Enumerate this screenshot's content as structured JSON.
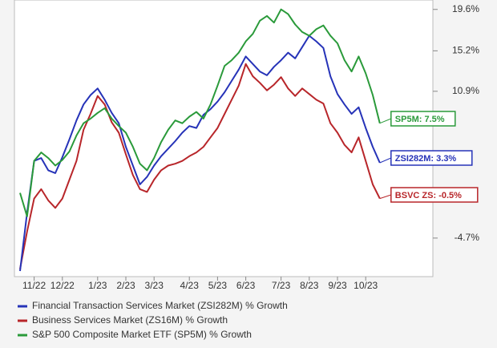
{
  "chart_data": {
    "type": "line",
    "categories": [
      null,
      null,
      "11/22",
      null,
      null,
      null,
      "12/22",
      null,
      null,
      null,
      null,
      "1/23",
      null,
      null,
      null,
      "2/23",
      null,
      null,
      null,
      "3/23",
      null,
      null,
      null,
      null,
      "4/23",
      null,
      null,
      null,
      "5/23",
      null,
      null,
      null,
      "6/23",
      null,
      null,
      null,
      null,
      "7/23",
      null,
      null,
      null,
      "8/23",
      null,
      null,
      null,
      "9/23",
      null,
      null,
      null,
      "10/23",
      null,
      null
    ],
    "ylim": [
      -8.8,
      20.6
    ],
    "yticks": [
      {
        "value": 19.6,
        "label": "19.6%"
      },
      {
        "value": 15.2,
        "label": "15.2%"
      },
      {
        "value": 10.9,
        "label": "10.9%"
      },
      {
        "value": -4.7,
        "label": "-4.7%"
      }
    ],
    "series": [
      {
        "name": "Financial Transaction Services Market (ZSI282M) % Growth",
        "color": "#2633b8",
        "end_label": "ZSI282M: 3.3%",
        "values": [
          -8.2,
          -2.0,
          3.5,
          3.8,
          2.5,
          2.2,
          3.9,
          5.8,
          7.8,
          9.5,
          10.5,
          11.2,
          10.0,
          8.6,
          7.5,
          5.0,
          3.0,
          1.0,
          1.8,
          3.0,
          4.0,
          4.8,
          5.6,
          6.5,
          7.2,
          7.0,
          8.4,
          9.0,
          9.8,
          10.8,
          12.0,
          13.2,
          14.6,
          13.8,
          13.0,
          12.6,
          13.5,
          14.2,
          15.0,
          14.4,
          15.6,
          16.8,
          16.2,
          15.5,
          12.5,
          10.6,
          9.5,
          8.5,
          9.2,
          7.0,
          5.0,
          3.3
        ]
      },
      {
        "name": "Business Services Market (ZS16M) % Growth",
        "color": "#b8262a",
        "end_label": "BSVC ZS: -0.5%",
        "values": [
          -8.0,
          -4.0,
          -0.5,
          0.5,
          -0.7,
          -1.5,
          -0.5,
          1.5,
          3.5,
          6.8,
          8.5,
          10.4,
          9.5,
          7.6,
          6.5,
          4.2,
          2.0,
          0.5,
          0.2,
          1.5,
          2.5,
          3.0,
          3.2,
          3.5,
          4.0,
          4.4,
          5.0,
          6.0,
          7.0,
          8.5,
          10.0,
          11.5,
          13.8,
          12.5,
          11.8,
          11.0,
          11.6,
          12.4,
          11.2,
          10.4,
          11.2,
          10.6,
          10.0,
          9.6,
          7.5,
          6.5,
          5.2,
          4.4,
          6.0,
          3.5,
          1.0,
          -0.5
        ]
      },
      {
        "name": "S&P 500 Composite Market ETF (SP5M) % Growth",
        "color": "#2a9a3a",
        "end_label": "SP5M: 7.5%",
        "values": [
          0.1,
          -2.4,
          3.5,
          4.4,
          3.8,
          3.0,
          3.6,
          4.5,
          6.2,
          7.5,
          8.0,
          8.6,
          9.1,
          8.0,
          7.2,
          6.5,
          5.0,
          3.2,
          2.5,
          3.8,
          5.5,
          6.8,
          7.8,
          7.5,
          8.2,
          8.7,
          8.0,
          9.5,
          11.5,
          13.6,
          14.2,
          15.0,
          16.2,
          17.0,
          18.4,
          18.9,
          18.2,
          19.6,
          19.1,
          18.0,
          17.2,
          16.8,
          17.5,
          17.9,
          16.8,
          16.0,
          14.2,
          13.0,
          14.6,
          12.8,
          10.5,
          7.5
        ]
      }
    ]
  }
}
